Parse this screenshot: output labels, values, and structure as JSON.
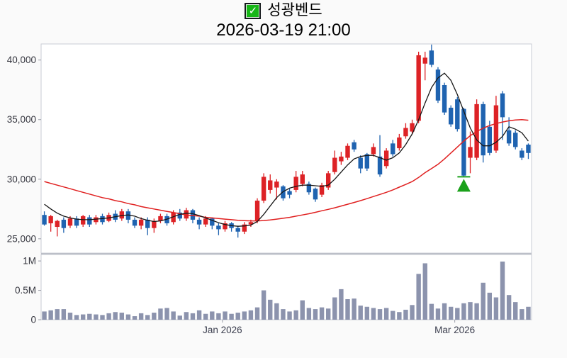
{
  "header": {
    "checkbox_icon": "checkbox-checked-icon",
    "checkmark_glyph": "✓",
    "title": "성광벤드",
    "datetime": "2026-03-19 21:00"
  },
  "colors": {
    "background": "#fafafa",
    "panel_fill": "#ffffff",
    "panel_border": "#c9ccd4",
    "up_candle": "#dd2226",
    "down_candle": "#1f63b0",
    "ma_short": "#161616",
    "ma_long": "#e02020",
    "volume_bar": "#8c93ad",
    "marker_green": "#1ba11b",
    "y_label": "#35363f",
    "x_label": "#3b3e4e",
    "checkbox_green": "#17b617"
  },
  "chart_data": {
    "type": "candlestick",
    "title": "성광벤드",
    "subtitle": "2026-03-19 21:00",
    "legend": "none",
    "grid": "off",
    "x_tick_labels": [
      {
        "position": 27.6,
        "label": "Jan 2026"
      },
      {
        "position": 63.6,
        "label": "Mar 2026"
      }
    ],
    "price_panel": {
      "ylim": [
        23800,
        41350
      ],
      "yticks": [
        {
          "value": 25000,
          "label": "25,000"
        },
        {
          "value": 30000,
          "label": "30,000"
        },
        {
          "value": 35000,
          "label": "35,000"
        },
        {
          "value": 40000,
          "label": "40,000"
        }
      ],
      "ohlc_note": "each candle is [open, high, low, close] in KRW; close>=open renders red (up), close<open renders blue (down)",
      "candles": [
        [
          27000,
          27300,
          26100,
          26200
        ],
        [
          26300,
          27000,
          25600,
          26900
        ],
        [
          26000,
          26600,
          25200,
          26500
        ],
        [
          26600,
          26800,
          25500,
          25900
        ],
        [
          26100,
          26900,
          25900,
          26700
        ],
        [
          26700,
          26900,
          25900,
          26100
        ],
        [
          26200,
          27000,
          26000,
          26900
        ],
        [
          26800,
          27000,
          26000,
          26200
        ],
        [
          26400,
          27000,
          26200,
          26800
        ],
        [
          26900,
          27100,
          26200,
          26400
        ],
        [
          26500,
          27200,
          26400,
          27000
        ],
        [
          27100,
          27400,
          26400,
          26600
        ],
        [
          26700,
          27500,
          26500,
          27300
        ],
        [
          27300,
          27500,
          26300,
          26600
        ],
        [
          26600,
          26800,
          25900,
          26100
        ],
        [
          26100,
          26800,
          25800,
          26600
        ],
        [
          26600,
          26800,
          25300,
          25900
        ],
        [
          25900,
          26700,
          25500,
          26500
        ],
        [
          26500,
          27100,
          26300,
          26900
        ],
        [
          26900,
          27100,
          26100,
          26300
        ],
        [
          26400,
          27400,
          26200,
          27200
        ],
        [
          27200,
          27500,
          26500,
          26700
        ],
        [
          26700,
          27600,
          26500,
          27400
        ],
        [
          27400,
          27500,
          26300,
          26600
        ],
        [
          26600,
          26800,
          25800,
          26200
        ],
        [
          26200,
          26900,
          26000,
          26700
        ],
        [
          26700,
          26800,
          25800,
          26100
        ],
        [
          26100,
          26300,
          25300,
          25800
        ],
        [
          25800,
          26500,
          25600,
          26300
        ],
        [
          26300,
          26400,
          25600,
          25900
        ],
        [
          25900,
          26100,
          25100,
          25600
        ],
        [
          25600,
          26400,
          25400,
          26200
        ],
        [
          26200,
          26600,
          26000,
          26400
        ],
        [
          26500,
          28400,
          26300,
          28200
        ],
        [
          28200,
          30500,
          28000,
          30200
        ],
        [
          29100,
          30400,
          28800,
          29900
        ],
        [
          29300,
          30000,
          28300,
          29800
        ],
        [
          29400,
          29500,
          28200,
          28400
        ],
        [
          29000,
          29200,
          28400,
          28700
        ],
        [
          29100,
          30700,
          28900,
          30200
        ],
        [
          29600,
          30700,
          29400,
          30400
        ],
        [
          29600,
          29800,
          28700,
          28900
        ],
        [
          29200,
          29300,
          28100,
          28300
        ],
        [
          28700,
          29700,
          28500,
          29500
        ],
        [
          29300,
          30700,
          29100,
          30500
        ],
        [
          30600,
          32400,
          30400,
          31800
        ],
        [
          31500,
          32300,
          31200,
          31900
        ],
        [
          31800,
          33000,
          31600,
          32800
        ],
        [
          33100,
          33300,
          32300,
          32500
        ],
        [
          31800,
          32000,
          30500,
          30900
        ],
        [
          32100,
          32200,
          30700,
          30900
        ],
        [
          32100,
          33000,
          31900,
          32700
        ],
        [
          31900,
          33700,
          30200,
          30400
        ],
        [
          31100,
          32600,
          30900,
          32400
        ],
        [
          33000,
          33300,
          31900,
          32100
        ],
        [
          32600,
          33800,
          32400,
          33500
        ],
        [
          33600,
          34700,
          33400,
          34300
        ],
        [
          34000,
          35000,
          33800,
          34700
        ],
        [
          34900,
          40700,
          34700,
          40400
        ],
        [
          39700,
          40700,
          38300,
          40200
        ],
        [
          40800,
          41300,
          39400,
          39600
        ],
        [
          39200,
          39400,
          36400,
          36600
        ],
        [
          37900,
          38100,
          35400,
          35600
        ],
        [
          36000,
          36200,
          34400,
          34600
        ],
        [
          36700,
          36900,
          34000,
          34200
        ],
        [
          35900,
          36000,
          30200,
          30300
        ],
        [
          31800,
          34000,
          30500,
          32700
        ],
        [
          31800,
          36700,
          31600,
          36300
        ],
        [
          36300,
          36500,
          31400,
          32000
        ],
        [
          34400,
          34900,
          32000,
          32200
        ],
        [
          32400,
          37000,
          32200,
          36200
        ],
        [
          37200,
          37400,
          33300,
          35200
        ],
        [
          34100,
          35200,
          32800,
          33000
        ],
        [
          33900,
          34100,
          32500,
          32700
        ],
        [
          32400,
          32600,
          31600,
          31800
        ],
        [
          32900,
          33000,
          31700,
          32200
        ]
      ],
      "ma_short": [
        27900,
        27500,
        27150,
        26900,
        26750,
        26650,
        26600,
        26600,
        26650,
        26700,
        26750,
        26850,
        26950,
        27000,
        26900,
        26700,
        26550,
        26450,
        26500,
        26650,
        26850,
        27050,
        27150,
        27100,
        26950,
        26750,
        26550,
        26350,
        26200,
        26100,
        26050,
        26080,
        26150,
        26450,
        27050,
        27750,
        28450,
        28950,
        29250,
        29400,
        29500,
        29500,
        29450,
        29400,
        29500,
        30000,
        30600,
        31200,
        31700,
        31900,
        32000,
        32000,
        31800,
        31600,
        31800,
        32200,
        32900,
        33800,
        35000,
        36400,
        37700,
        38500,
        38900,
        38300,
        37100,
        35700,
        34300,
        33300,
        32800,
        32800,
        33100,
        33600,
        34400,
        34200,
        33900,
        33200
      ],
      "ma_long": [
        29800,
        29650,
        29500,
        29350,
        29200,
        29050,
        28900,
        28750,
        28600,
        28450,
        28350,
        28200,
        28100,
        27950,
        27850,
        27700,
        27600,
        27500,
        27400,
        27300,
        27200,
        27100,
        27000,
        26950,
        26900,
        26800,
        26750,
        26700,
        26650,
        26600,
        26550,
        26520,
        26500,
        26500,
        26530,
        26580,
        26650,
        26720,
        26800,
        26900,
        27000,
        27100,
        27220,
        27350,
        27470,
        27600,
        27750,
        27900,
        28050,
        28200,
        28370,
        28550,
        28720,
        28900,
        29100,
        29330,
        29560,
        29800,
        30150,
        30550,
        30900,
        31250,
        31700,
        32200,
        32700,
        33200,
        33650,
        34000,
        34280,
        34500,
        34670,
        34800,
        34900,
        34970,
        35000,
        34950
      ]
    },
    "volume_panel": {
      "ylim_millions": [
        0,
        1.11
      ],
      "yticks": [
        {
          "value": 0,
          "label": "0"
        },
        {
          "value": 0.5,
          "label": "0.5M"
        },
        {
          "value": 1,
          "label": "1M"
        }
      ],
      "values_millions": [
        0.14,
        0.16,
        0.18,
        0.18,
        0.12,
        0.08,
        0.09,
        0.1,
        0.09,
        0.08,
        0.11,
        0.13,
        0.12,
        0.09,
        0.06,
        0.11,
        0.08,
        0.12,
        0.19,
        0.2,
        0.14,
        0.07,
        0.13,
        0.11,
        0.16,
        0.1,
        0.14,
        0.11,
        0.14,
        0.1,
        0.12,
        0.14,
        0.16,
        0.21,
        0.5,
        0.34,
        0.28,
        0.18,
        0.14,
        0.16,
        0.33,
        0.2,
        0.18,
        0.21,
        0.19,
        0.38,
        0.52,
        0.35,
        0.36,
        0.24,
        0.22,
        0.2,
        0.18,
        0.2,
        0.15,
        0.13,
        0.17,
        0.25,
        0.78,
        0.96,
        0.27,
        0.19,
        0.28,
        0.22,
        0.2,
        0.28,
        0.3,
        0.28,
        0.63,
        0.46,
        0.38,
        0.99,
        0.42,
        0.3,
        0.18,
        0.22
      ]
    },
    "marker": {
      "type": "triangle-up",
      "meaning": "signal-marker",
      "candle_index": 65,
      "price": 30200
    }
  }
}
